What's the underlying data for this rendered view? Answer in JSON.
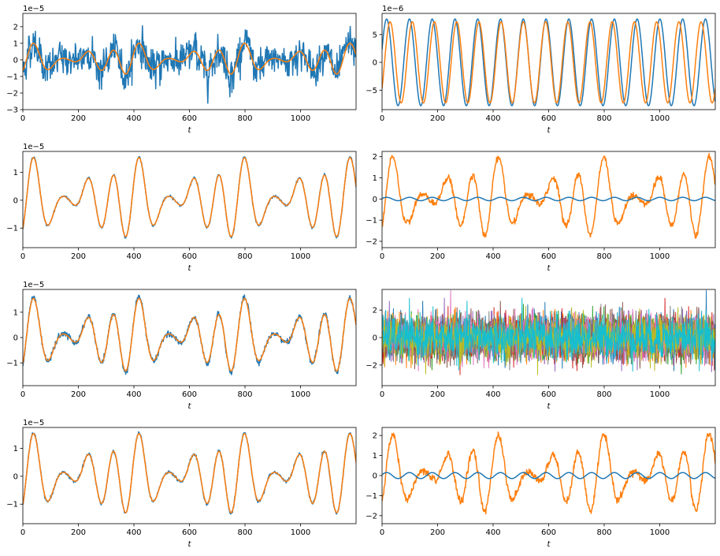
{
  "colors": {
    "c0": "#1f77b4",
    "c1": "#ff7f0e",
    "c2": "#2ca02c",
    "c3": "#d62728",
    "c4": "#9467bd",
    "c5": "#8c564b",
    "c6": "#e377c2",
    "c7": "#7f7f7f",
    "c8": "#bcbd22",
    "c9": "#17becf"
  },
  "chart_data": [
    {
      "id": "p00",
      "type": "line",
      "xlabel": "t",
      "offset": "1e−5",
      "xlim": [
        0,
        1200
      ],
      "ylim": [
        -3,
        2.8
      ],
      "xticks": [
        0,
        200,
        400,
        600,
        800,
        1000
      ],
      "yticks": [
        -3,
        -2,
        -1,
        0,
        1,
        2
      ],
      "series": [
        {
          "color": "c0",
          "kind": "noisy-quasi",
          "amp": 1.0,
          "noise": 0.55
        },
        {
          "color": "c1",
          "kind": "quasi",
          "amp": 1.0
        }
      ]
    },
    {
      "id": "p01",
      "type": "line",
      "xlabel": "t",
      "offset": "1e−6",
      "xlim": [
        0,
        1200
      ],
      "ylim": [
        -8.5,
        8.8
      ],
      "xticks": [
        0,
        200,
        400,
        600,
        800,
        1000
      ],
      "yticks": [
        -5,
        0,
        5
      ],
      "series": [
        {
          "color": "c0",
          "kind": "sine",
          "amp": 7.8,
          "period": 82,
          "phase": 0.3
        },
        {
          "color": "c1",
          "kind": "sine",
          "amp": 7.3,
          "period": 80,
          "phase": -0.7
        }
      ]
    },
    {
      "id": "p10",
      "type": "line",
      "xlabel": "t",
      "offset": "1e−5",
      "xlim": [
        0,
        1200
      ],
      "ylim": [
        -1.7,
        1.75
      ],
      "xticks": [
        0,
        200,
        400,
        600,
        800,
        1000
      ],
      "yticks": [
        -1,
        0,
        1
      ],
      "series": [
        {
          "color": "c0",
          "kind": "quasi",
          "amp": 1.55,
          "noise": 0.02
        },
        {
          "color": "c1",
          "kind": "quasi",
          "amp": 1.53
        }
      ]
    },
    {
      "id": "p11",
      "type": "line",
      "xlabel": "t",
      "xlim": [
        0,
        1200
      ],
      "ylim": [
        -2.3,
        2.25
      ],
      "xticks": [
        0,
        200,
        400,
        600,
        800,
        1000
      ],
      "yticks": [
        -2,
        -1,
        0,
        1,
        2
      ],
      "series": [
        {
          "color": "c1",
          "kind": "noisy-quasi",
          "amp": 2.0,
          "noise": 0.08
        },
        {
          "color": "c0",
          "kind": "sine",
          "amp": 0.08,
          "period": 82,
          "phase": 0.3
        }
      ]
    },
    {
      "id": "p20",
      "type": "line",
      "xlabel": "t",
      "offset": "1e−5",
      "xlim": [
        0,
        1200
      ],
      "ylim": [
        -1.9,
        1.9
      ],
      "xticks": [
        0,
        200,
        400,
        600,
        800,
        1000
      ],
      "yticks": [
        -1,
        0,
        1
      ],
      "series": [
        {
          "color": "c0",
          "kind": "noisy-quasi",
          "amp": 1.6,
          "noise": 0.06
        },
        {
          "color": "c1",
          "kind": "quasi",
          "amp": 1.55
        }
      ]
    },
    {
      "id": "p21",
      "type": "line",
      "xlabel": "t",
      "xlim": [
        0,
        1200
      ],
      "ylim": [
        -3.5,
        3.5
      ],
      "xticks": [
        0,
        200,
        400,
        600,
        800,
        1000
      ],
      "yticks": [
        -2,
        0,
        2
      ],
      "series": [
        {
          "color": "c0",
          "kind": "noise",
          "amp": 1.0
        },
        {
          "color": "c1",
          "kind": "noise",
          "amp": 1.0
        },
        {
          "color": "c2",
          "kind": "noise",
          "amp": 1.0
        },
        {
          "color": "c3",
          "kind": "noise",
          "amp": 1.0
        },
        {
          "color": "c4",
          "kind": "noise",
          "amp": 1.0
        },
        {
          "color": "c5",
          "kind": "noise",
          "amp": 1.0
        },
        {
          "color": "c6",
          "kind": "noise",
          "amp": 1.0
        },
        {
          "color": "c7",
          "kind": "noise",
          "amp": 1.0
        },
        {
          "color": "c8",
          "kind": "noise",
          "amp": 1.0
        },
        {
          "color": "c9",
          "kind": "noise",
          "amp": 1.0
        }
      ]
    },
    {
      "id": "p30",
      "type": "line",
      "xlabel": "t",
      "offset": "1e−5",
      "xlim": [
        0,
        1200
      ],
      "ylim": [
        -1.7,
        1.75
      ],
      "xticks": [
        0,
        200,
        400,
        600,
        800,
        1000
      ],
      "yticks": [
        -1,
        0,
        1
      ],
      "series": [
        {
          "color": "c0",
          "kind": "noisy-quasi",
          "amp": 1.55,
          "noise": 0.03
        },
        {
          "color": "c1",
          "kind": "quasi",
          "amp": 1.53
        }
      ]
    },
    {
      "id": "p31",
      "type": "line",
      "xlabel": "t",
      "xlim": [
        0,
        1200
      ],
      "ylim": [
        -2.4,
        2.4
      ],
      "xticks": [
        0,
        200,
        400,
        600,
        800,
        1000
      ],
      "yticks": [
        -2,
        -1,
        0,
        1,
        2
      ],
      "series": [
        {
          "color": "c1",
          "kind": "noisy-quasi",
          "amp": 2.05,
          "noise": 0.1
        },
        {
          "color": "c0",
          "kind": "sine",
          "amp": 0.15,
          "period": 82,
          "phase": 0.3
        }
      ]
    }
  ]
}
